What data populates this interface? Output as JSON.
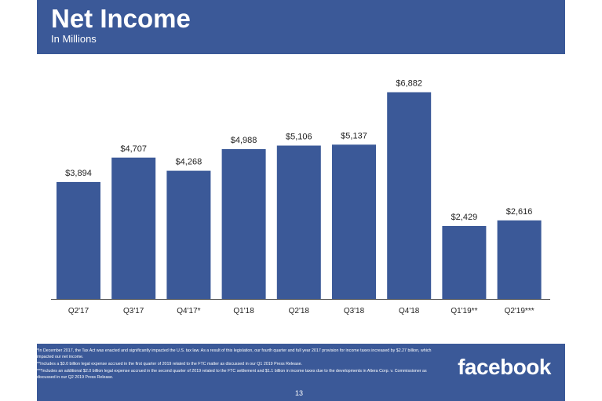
{
  "header": {
    "title": "Net Income",
    "subtitle": "In Millions"
  },
  "chart_data": {
    "type": "bar",
    "title": "Net Income",
    "subtitle": "In Millions",
    "categories": [
      "Q2'17",
      "Q3'17",
      "Q4'17*",
      "Q1'18",
      "Q2'18",
      "Q3'18",
      "Q4'18",
      "Q1'19**",
      "Q2'19***"
    ],
    "values": [
      3894,
      4707,
      4268,
      4988,
      5106,
      5137,
      6882,
      2429,
      2616
    ],
    "value_labels": [
      "$3,894",
      "$4,707",
      "$4,268",
      "$4,988",
      "$5,106",
      "$5,137",
      "$6,882",
      "$2,429",
      "$2,616"
    ],
    "xlabel": "",
    "ylabel": "",
    "ylim": [
      0,
      7000
    ],
    "grid": false,
    "legend": "none",
    "bar_color": "#3b5998"
  },
  "footer": {
    "notes": [
      "*In December 2017, the Tax Act was enacted and significantly impacted the U.S. tax law. As a result of this legislation, our fourth quarter and full year 2017 provision for income taxes increased by $2.27 billion, which impacted our net income.",
      "**Includes a $3.0 billion legal expense accrued in the first quarter of 2019 related to the FTC matter as discussed in our Q1 2019 Press Release.",
      "***Includes an additional $2.0 billion legal expense accrued in the second quarter of 2019 related to the FTC settlement and $1.1 billion in income taxes due to the developments in Altera Corp. v. Commissioner as discussed in our Q2 2019 Press Release."
    ],
    "brand": "facebook",
    "page_number": "13"
  },
  "colors": {
    "brand_blue": "#3b5998",
    "axis": "#555555",
    "text": "#222222"
  }
}
